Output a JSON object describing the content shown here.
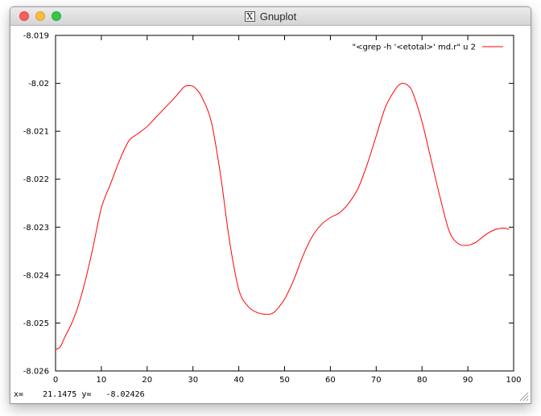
{
  "window": {
    "title": "Gnuplot",
    "icon": "x11-icon"
  },
  "statusbar": {
    "x_label": "x=",
    "x_value": "21.1475",
    "y_label": "y=",
    "y_value": "-8.02426"
  },
  "chart_data": {
    "type": "line",
    "ylim": [
      -8.026,
      -8.019
    ],
    "xlim": [
      0,
      100
    ],
    "xticks": [
      0,
      10,
      20,
      30,
      40,
      50,
      60,
      70,
      80,
      90,
      100
    ],
    "yticks": [
      -8.019,
      -8.02,
      -8.021,
      -8.022,
      -8.023,
      -8.024,
      -8.025,
      -8.026
    ],
    "ytick_labels": [
      "-8.019",
      "-8.02",
      "-8.021",
      "-8.022",
      "-8.023",
      "-8.024",
      "-8.025",
      "-8.026"
    ],
    "grid": false,
    "legend_position": "top-right",
    "series": [
      {
        "name": "\"<grep -h '<etotal>' md.r\" u 2",
        "color": "#ff0000",
        "x": [
          0,
          1,
          2,
          4,
          6,
          8,
          10,
          12,
          14,
          16,
          18,
          20,
          22,
          24,
          26,
          28,
          29,
          30,
          31,
          32,
          34,
          36,
          38,
          40,
          42,
          44,
          46,
          47,
          48,
          50,
          52,
          54,
          56,
          58,
          60,
          62,
          64,
          66,
          68,
          70,
          72,
          74,
          75,
          76,
          77,
          78,
          80,
          82,
          84,
          86,
          88,
          90,
          91,
          92,
          94,
          96,
          98,
          99
        ],
        "y": [
          -8.02555,
          -8.0255,
          -8.0253,
          -8.0249,
          -8.0243,
          -8.0235,
          -8.0226,
          -8.0221,
          -8.0216,
          -8.0212,
          -8.02105,
          -8.0209,
          -8.0207,
          -8.0205,
          -8.0203,
          -8.02008,
          -8.02005,
          -8.02006,
          -8.02015,
          -8.0203,
          -8.0208,
          -8.0219,
          -8.0233,
          -8.0243,
          -8.02465,
          -8.02478,
          -8.02482,
          -8.02481,
          -8.02475,
          -8.0245,
          -8.0241,
          -8.0236,
          -8.0232,
          -8.02295,
          -8.0228,
          -8.0227,
          -8.0225,
          -8.0222,
          -8.0217,
          -8.0211,
          -8.0205,
          -8.02015,
          -8.02003,
          -8.02,
          -8.02005,
          -8.0202,
          -8.0208,
          -8.0216,
          -8.0224,
          -8.0231,
          -8.02335,
          -8.02338,
          -8.02335,
          -8.0233,
          -8.02315,
          -8.02305,
          -8.02302,
          -8.02305
        ]
      }
    ]
  }
}
